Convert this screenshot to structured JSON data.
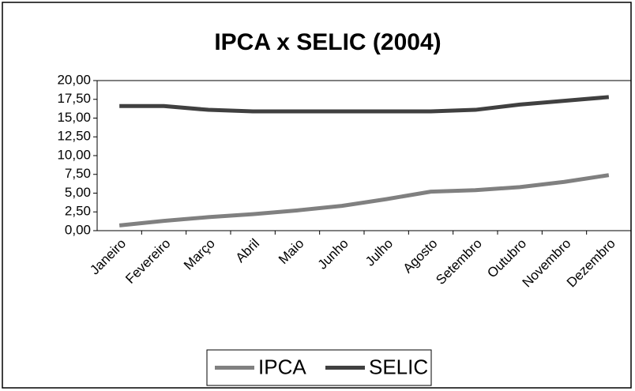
{
  "chart_data": {
    "type": "line",
    "title": "IPCA x SELIC (2004)",
    "categories": [
      "Janeiro",
      "Fevereiro",
      "Março",
      "Abril",
      "Maio",
      "Junho",
      "Julho",
      "Agosto",
      "Setembro",
      "Outubro",
      "Novembro",
      "Dezembro"
    ],
    "series": [
      {
        "name": "IPCA",
        "color": "#808080",
        "values": [
          0.7,
          1.3,
          1.8,
          2.2,
          2.7,
          3.3,
          4.2,
          5.2,
          5.4,
          5.8,
          6.5,
          7.4
        ]
      },
      {
        "name": "SELIC",
        "color": "#404040",
        "values": [
          16.6,
          16.6,
          16.1,
          15.9,
          15.9,
          15.9,
          15.9,
          15.9,
          16.1,
          16.8,
          17.3,
          17.8
        ]
      }
    ],
    "ylim": [
      0,
      20
    ],
    "yticks": [
      {
        "value": 0,
        "label": "0,00"
      },
      {
        "value": 2.5,
        "label": "2,50"
      },
      {
        "value": 5,
        "label": "5,00"
      },
      {
        "value": 7.5,
        "label": "7,50"
      },
      {
        "value": 10,
        "label": "10,00"
      },
      {
        "value": 12.5,
        "label": "12,50"
      },
      {
        "value": 15,
        "label": "15,00"
      },
      {
        "value": 17.5,
        "label": "17,50"
      },
      {
        "value": 20,
        "label": "20,00"
      }
    ],
    "grid": false,
    "legend": "bottom"
  }
}
